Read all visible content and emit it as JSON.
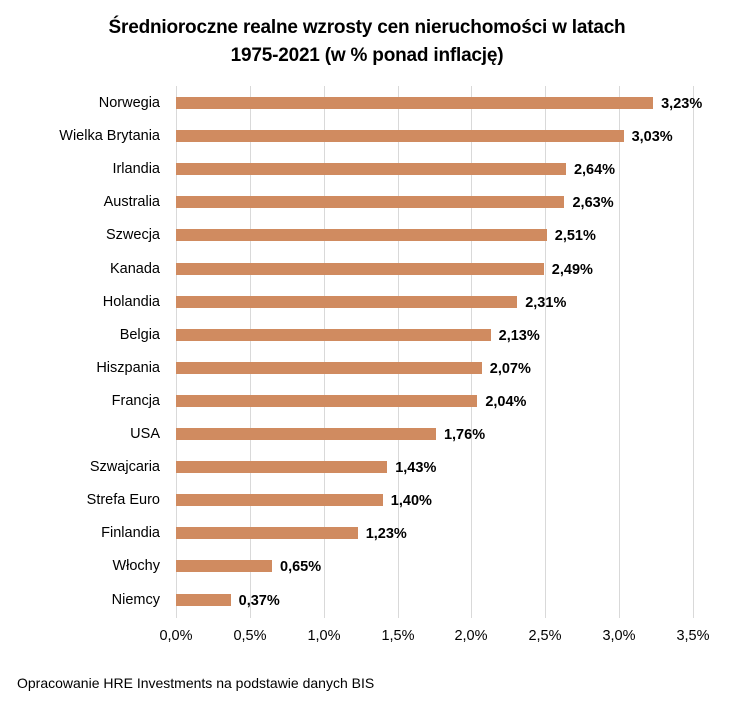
{
  "chart_data": {
    "type": "bar",
    "orientation": "horizontal",
    "title": "Średnioroczne realne wzrosty cen nieruchomości w latach 1975-2021 (w % ponad inflację)",
    "title_lines": [
      "Średnioroczne realne wzrosty cen nieruchomości w latach",
      "1975-2021 (w % ponad inflację)"
    ],
    "categories": [
      "Norwegia",
      "Wielka Brytania",
      "Irlandia",
      "Australia",
      "Szwecja",
      "Kanada",
      "Holandia",
      "Belgia",
      "Hiszpania",
      "Francja",
      "USA",
      "Szwajcaria",
      "Strefa Euro",
      "Finlandia",
      "Włochy",
      "Niemcy"
    ],
    "values": [
      3.23,
      3.03,
      2.64,
      2.63,
      2.51,
      2.49,
      2.31,
      2.13,
      2.07,
      2.04,
      1.76,
      1.43,
      1.4,
      1.23,
      0.65,
      0.37
    ],
    "value_labels": [
      "3,23%",
      "3,03%",
      "2,64%",
      "2,63%",
      "2,51%",
      "2,49%",
      "2,31%",
      "2,13%",
      "2,07%",
      "2,04%",
      "1,76%",
      "1,43%",
      "1,40%",
      "1,23%",
      "0,65%",
      "0,37%"
    ],
    "xlabel": "",
    "ylabel": "",
    "xlim": [
      0,
      3.5
    ],
    "x_ticks": [
      0,
      0.5,
      1.0,
      1.5,
      2.0,
      2.5,
      3.0,
      3.5
    ],
    "x_tick_labels": [
      "0,0%",
      "0,5%",
      "1,0%",
      "1,5%",
      "2,0%",
      "2,5%",
      "3,0%",
      "3,5%"
    ],
    "grid": "vertical",
    "legend": "none",
    "bar_color": "#d08b60",
    "source_note": "Opracowanie HRE Investments na podstawie danych BIS"
  }
}
